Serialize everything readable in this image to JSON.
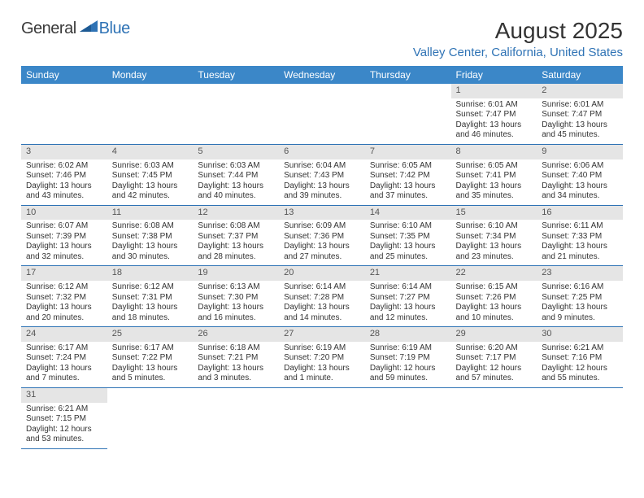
{
  "logo": {
    "textDark": "General",
    "textAccent": "Blue"
  },
  "header": {
    "monthTitle": "August 2025",
    "location": "Valley Center, California, United States"
  },
  "colors": {
    "headerBar": "#3b87c8",
    "headerText": "#ffffff",
    "accent": "#2f73b5",
    "dayBar": "#e5e5e5",
    "bodyText": "#333333",
    "background": "#ffffff"
  },
  "typography": {
    "monthTitle_pt": 21,
    "location_pt": 11,
    "dayHeader_pt": 9,
    "dayNum_pt": 8,
    "body_pt": 7.5
  },
  "calendar": {
    "type": "table",
    "columns": [
      "Sunday",
      "Monday",
      "Tuesday",
      "Wednesday",
      "Thursday",
      "Friday",
      "Saturday"
    ],
    "firstDayOffset": 5,
    "days": [
      {
        "num": "1",
        "sunrise": "6:01 AM",
        "sunset": "7:47 PM",
        "daylight": "13 hours and 46 minutes."
      },
      {
        "num": "2",
        "sunrise": "6:01 AM",
        "sunset": "7:47 PM",
        "daylight": "13 hours and 45 minutes."
      },
      {
        "num": "3",
        "sunrise": "6:02 AM",
        "sunset": "7:46 PM",
        "daylight": "13 hours and 43 minutes."
      },
      {
        "num": "4",
        "sunrise": "6:03 AM",
        "sunset": "7:45 PM",
        "daylight": "13 hours and 42 minutes."
      },
      {
        "num": "5",
        "sunrise": "6:03 AM",
        "sunset": "7:44 PM",
        "daylight": "13 hours and 40 minutes."
      },
      {
        "num": "6",
        "sunrise": "6:04 AM",
        "sunset": "7:43 PM",
        "daylight": "13 hours and 39 minutes."
      },
      {
        "num": "7",
        "sunrise": "6:05 AM",
        "sunset": "7:42 PM",
        "daylight": "13 hours and 37 minutes."
      },
      {
        "num": "8",
        "sunrise": "6:05 AM",
        "sunset": "7:41 PM",
        "daylight": "13 hours and 35 minutes."
      },
      {
        "num": "9",
        "sunrise": "6:06 AM",
        "sunset": "7:40 PM",
        "daylight": "13 hours and 34 minutes."
      },
      {
        "num": "10",
        "sunrise": "6:07 AM",
        "sunset": "7:39 PM",
        "daylight": "13 hours and 32 minutes."
      },
      {
        "num": "11",
        "sunrise": "6:08 AM",
        "sunset": "7:38 PM",
        "daylight": "13 hours and 30 minutes."
      },
      {
        "num": "12",
        "sunrise": "6:08 AM",
        "sunset": "7:37 PM",
        "daylight": "13 hours and 28 minutes."
      },
      {
        "num": "13",
        "sunrise": "6:09 AM",
        "sunset": "7:36 PM",
        "daylight": "13 hours and 27 minutes."
      },
      {
        "num": "14",
        "sunrise": "6:10 AM",
        "sunset": "7:35 PM",
        "daylight": "13 hours and 25 minutes."
      },
      {
        "num": "15",
        "sunrise": "6:10 AM",
        "sunset": "7:34 PM",
        "daylight": "13 hours and 23 minutes."
      },
      {
        "num": "16",
        "sunrise": "6:11 AM",
        "sunset": "7:33 PM",
        "daylight": "13 hours and 21 minutes."
      },
      {
        "num": "17",
        "sunrise": "6:12 AM",
        "sunset": "7:32 PM",
        "daylight": "13 hours and 20 minutes."
      },
      {
        "num": "18",
        "sunrise": "6:12 AM",
        "sunset": "7:31 PM",
        "daylight": "13 hours and 18 minutes."
      },
      {
        "num": "19",
        "sunrise": "6:13 AM",
        "sunset": "7:30 PM",
        "daylight": "13 hours and 16 minutes."
      },
      {
        "num": "20",
        "sunrise": "6:14 AM",
        "sunset": "7:28 PM",
        "daylight": "13 hours and 14 minutes."
      },
      {
        "num": "21",
        "sunrise": "6:14 AM",
        "sunset": "7:27 PM",
        "daylight": "13 hours and 12 minutes."
      },
      {
        "num": "22",
        "sunrise": "6:15 AM",
        "sunset": "7:26 PM",
        "daylight": "13 hours and 10 minutes."
      },
      {
        "num": "23",
        "sunrise": "6:16 AM",
        "sunset": "7:25 PM",
        "daylight": "13 hours and 9 minutes."
      },
      {
        "num": "24",
        "sunrise": "6:17 AM",
        "sunset": "7:24 PM",
        "daylight": "13 hours and 7 minutes."
      },
      {
        "num": "25",
        "sunrise": "6:17 AM",
        "sunset": "7:22 PM",
        "daylight": "13 hours and 5 minutes."
      },
      {
        "num": "26",
        "sunrise": "6:18 AM",
        "sunset": "7:21 PM",
        "daylight": "13 hours and 3 minutes."
      },
      {
        "num": "27",
        "sunrise": "6:19 AM",
        "sunset": "7:20 PM",
        "daylight": "13 hours and 1 minute."
      },
      {
        "num": "28",
        "sunrise": "6:19 AM",
        "sunset": "7:19 PM",
        "daylight": "12 hours and 59 minutes."
      },
      {
        "num": "29",
        "sunrise": "6:20 AM",
        "sunset": "7:17 PM",
        "daylight": "12 hours and 57 minutes."
      },
      {
        "num": "30",
        "sunrise": "6:21 AM",
        "sunset": "7:16 PM",
        "daylight": "12 hours and 55 minutes."
      },
      {
        "num": "31",
        "sunrise": "6:21 AM",
        "sunset": "7:15 PM",
        "daylight": "12 hours and 53 minutes."
      }
    ],
    "labels": {
      "sunrise": "Sunrise:",
      "sunset": "Sunset:",
      "daylight": "Daylight:"
    }
  }
}
